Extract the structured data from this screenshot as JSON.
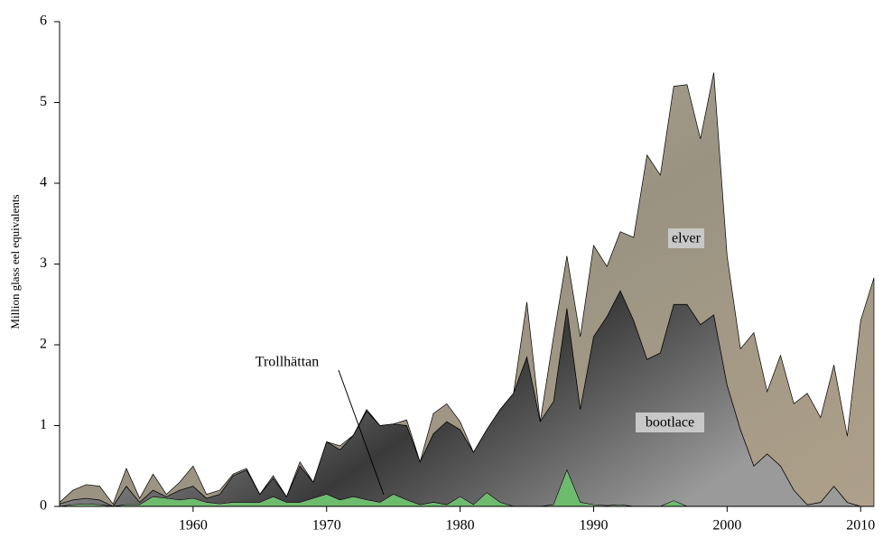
{
  "chart_data": {
    "type": "stacked-area",
    "y_label": "Million glass eel equivalents",
    "x": [
      1950,
      1951,
      1952,
      1953,
      1954,
      1955,
      1956,
      1957,
      1958,
      1959,
      1960,
      1961,
      1962,
      1963,
      1964,
      1965,
      1966,
      1967,
      1968,
      1969,
      1970,
      1971,
      1972,
      1973,
      1974,
      1975,
      1976,
      1977,
      1978,
      1979,
      1980,
      1981,
      1982,
      1983,
      1984,
      1985,
      1986,
      1987,
      1988,
      1989,
      1990,
      1991,
      1992,
      1993,
      1994,
      1995,
      1996,
      1997,
      1998,
      1999,
      2000,
      2001,
      2002,
      2003,
      2004,
      2005,
      2006,
      2007,
      2008,
      2009,
      2010,
      2011
    ],
    "xlim": [
      1950,
      2011
    ],
    "xticks": [
      1960,
      1970,
      1980,
      1990,
      2000,
      2010
    ],
    "ylim": [
      0,
      6
    ],
    "yticks": [
      0,
      1,
      2,
      3,
      4,
      5,
      6
    ],
    "series": [
      {
        "name": "Trollhättan",
        "color": "#6dbb6d",
        "values": [
          0,
          0.02,
          0.03,
          0.02,
          0,
          0.02,
          0.02,
          0.12,
          0.1,
          0.08,
          0.1,
          0.05,
          0.03,
          0.05,
          0.05,
          0.05,
          0.12,
          0.05,
          0.05,
          0.1,
          0.15,
          0.08,
          0.12,
          0.08,
          0.05,
          0.15,
          0.08,
          0.02,
          0.05,
          0.02,
          0.12,
          0.02,
          0.17,
          0.05,
          0,
          0,
          0,
          0.02,
          0.45,
          0.05,
          0.02,
          0.01,
          0.02,
          0,
          0,
          0,
          0.07,
          0,
          0,
          0,
          0,
          0,
          0,
          0,
          0,
          0,
          0,
          0,
          0,
          0,
          0,
          0
        ]
      },
      {
        "name": "bootlace",
        "color": "#5a5a5a",
        "values": [
          0.03,
          0.06,
          0.07,
          0.06,
          0,
          0.23,
          0.03,
          0.08,
          0.02,
          0.12,
          0.15,
          0.05,
          0.12,
          0.33,
          0.4,
          0.1,
          0.23,
          0.07,
          0.45,
          0.2,
          0.65,
          0.62,
          0.76,
          1.1,
          0.95,
          0.87,
          0.92,
          0.53,
          0.85,
          1.03,
          0.83,
          0.65,
          0.78,
          1.15,
          1.4,
          1.85,
          1.05,
          1.28,
          2.0,
          1.15,
          2.08,
          2.34,
          2.65,
          2.3,
          1.82,
          1.9,
          2.43,
          2.5,
          2.25,
          2.37,
          1.5,
          0.95,
          0.5,
          0.65,
          0.5,
          0.2,
          0.02,
          0.05,
          0.25,
          0.05,
          0,
          0
        ]
      },
      {
        "name": "elver",
        "color": "#a49c88",
        "values": [
          0.02,
          0.12,
          0.17,
          0.17,
          0.03,
          0.22,
          0.05,
          0.2,
          0.03,
          0.1,
          0.25,
          0.05,
          0.05,
          0.02,
          0.02,
          0,
          0.03,
          0,
          0.05,
          0,
          0,
          0.05,
          0,
          0.02,
          0,
          0,
          0.07,
          0,
          0.25,
          0.22,
          0.1,
          0,
          0,
          0,
          0,
          0.68,
          0,
          0.8,
          0.65,
          0.9,
          1.13,
          0.62,
          0.73,
          1.03,
          2.53,
          2.2,
          2.7,
          2.72,
          2.3,
          3.0,
          1.6,
          1.0,
          1.65,
          0.77,
          1.37,
          1.07,
          1.38,
          1.05,
          1.5,
          0.82,
          2.3,
          2.83
        ]
      }
    ]
  }
}
